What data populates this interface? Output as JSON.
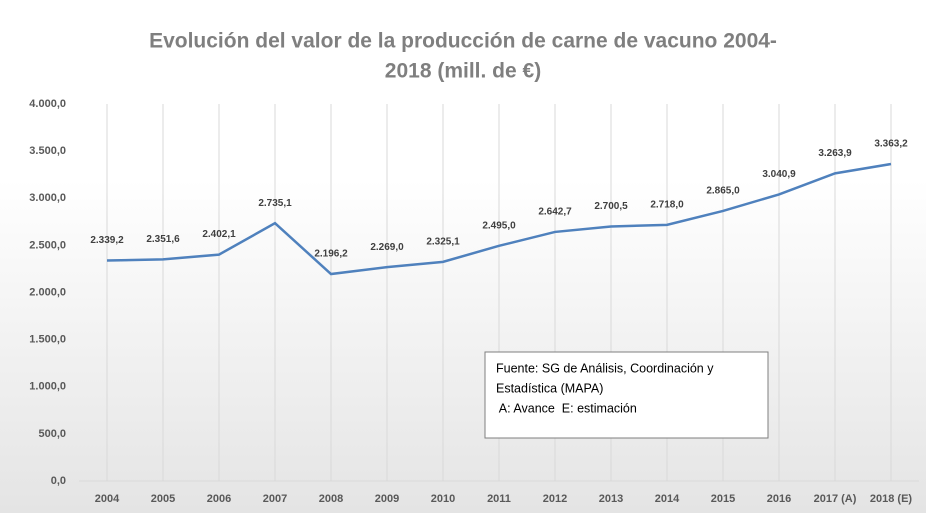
{
  "chart_data": {
    "type": "line",
    "title_lines": [
      "Evolución del valor de la producción de carne de vacuno 2004-",
      "2018 (mill. de €)"
    ],
    "categories": [
      "2004",
      "2005",
      "2006",
      "2007",
      "2008",
      "2009",
      "2010",
      "2011",
      "2012",
      "2013",
      "2014",
      "2015",
      "2016",
      "2017 (A)",
      "2018 (E)"
    ],
    "series": [
      {
        "color": "#4f81bd",
        "values": [
          2339.2,
          2351.6,
          2402.1,
          2735.1,
          2196.2,
          2269.0,
          2325.1,
          2495.0,
          2642.7,
          2700.5,
          2718.0,
          2865.0,
          3040.9,
          3263.9,
          3363.2
        ],
        "value_labels": [
          "2.339,2",
          "2.351,6",
          "2.402,1",
          "2.735,1",
          "2.196,2",
          "2.269,0",
          "2.325,1",
          "2.495,0",
          "2.642,7",
          "2.700,5",
          "2.718,0",
          "2.865,0",
          "3.040,9",
          "3.263,9",
          "3.363,2"
        ]
      }
    ],
    "ylim": [
      0,
      4000
    ],
    "yticks": [
      {
        "value": 0,
        "label": "0,0"
      },
      {
        "value": 500,
        "label": "500,0"
      },
      {
        "value": 1000,
        "label": "1.000,0"
      },
      {
        "value": 1500,
        "label": "1.500,0"
      },
      {
        "value": 2000,
        "label": "2.000,0"
      },
      {
        "value": 2500,
        "label": "2.500,0"
      },
      {
        "value": 3000,
        "label": "3.000,0"
      },
      {
        "value": 3500,
        "label": "3.500,0"
      },
      {
        "value": 4000,
        "label": "4.000,0"
      }
    ],
    "grid": false,
    "x_grid": true,
    "annotation_lines": [
      "Fuente: SG de Análisis, Coordinación y",
      "Estadística (MAPA)",
      " A: Avance  E: estimación"
    ]
  }
}
